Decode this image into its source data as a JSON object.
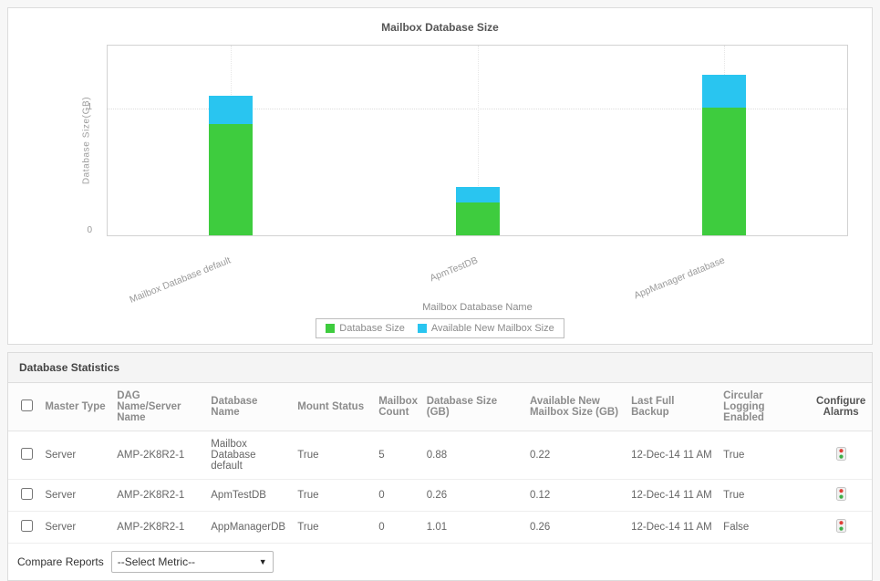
{
  "chart_data": {
    "type": "bar",
    "stacked": true,
    "title": "Mailbox Database Size",
    "xlabel": "Mailbox Database Name",
    "ylabel": "Database Size(GB)",
    "categories": [
      "Mailbox Database default",
      "ApmTestDB",
      "AppManager database"
    ],
    "series": [
      {
        "name": "Database Size",
        "color": "#3ecc3e",
        "values": [
          0.88,
          0.26,
          1.01
        ]
      },
      {
        "name": "Available New Mailbox Size",
        "color": "#29c5f0",
        "values": [
          0.22,
          0.12,
          0.26
        ]
      }
    ],
    "ylim": [
      0,
      1.5
    ],
    "yticks": [
      0,
      1
    ],
    "grid": "dotted",
    "legend_position": "bottom"
  },
  "table": {
    "title": "Database Statistics",
    "headers": [
      "Master Type",
      "DAG Name/Server Name",
      "Database Name",
      "Mount Status",
      "Mailbox Count",
      "Database Size (GB)",
      "Available New Mailbox Size (GB)",
      "Last Full Backup",
      "Circular Logging Enabled",
      "Configure Alarms"
    ],
    "rows": [
      {
        "master_type": "Server",
        "dag_name": "AMP-2K8R2-1",
        "database_name": "Mailbox Database default",
        "mount_status": "True",
        "mailbox_count": "5",
        "database_size": "0.88",
        "available_new_mailbox_size": "0.22",
        "last_full_backup": "12-Dec-14 11 AM",
        "circular_logging": "True"
      },
      {
        "master_type": "Server",
        "dag_name": "AMP-2K8R2-1",
        "database_name": "ApmTestDB",
        "mount_status": "True",
        "mailbox_count": "0",
        "database_size": "0.26",
        "available_new_mailbox_size": "0.12",
        "last_full_backup": "12-Dec-14 11 AM",
        "circular_logging": "True"
      },
      {
        "master_type": "Server",
        "dag_name": "AMP-2K8R2-1",
        "database_name": "AppManagerDB",
        "mount_status": "True",
        "mailbox_count": "0",
        "database_size": "1.01",
        "available_new_mailbox_size": "0.26",
        "last_full_backup": "12-Dec-14 11 AM",
        "circular_logging": "False"
      }
    ],
    "footer": {
      "compare_label": "Compare Reports",
      "select_value": "--Select Metric--"
    }
  },
  "icons": {
    "configure_alarm": "traffic-light-status-icon",
    "select_arrow_glyph": "▼"
  }
}
